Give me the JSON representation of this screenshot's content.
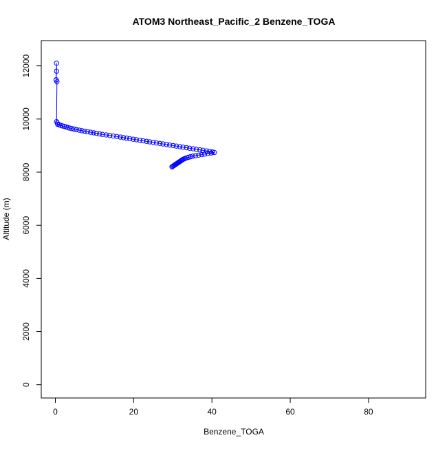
{
  "chart_data": {
    "type": "line",
    "title": "ATOM3 Northeast_Pacific_2 Benzene_TOGA",
    "xlabel": "Benzene_TOGA",
    "ylabel": "Altitude (m)",
    "xlim": [
      -3.6,
      94.6
    ],
    "ylim": [
      -500,
      12950
    ],
    "xticks": [
      0,
      20,
      40,
      60,
      80
    ],
    "yticks": [
      0,
      2000,
      4000,
      6000,
      8000,
      10000,
      12000
    ],
    "x_tick_labels": [
      "0",
      "20",
      "40",
      "60",
      "80"
    ],
    "y_tick_labels": [
      "0",
      "2000",
      "4000",
      "6000",
      "8000",
      "10000",
      "12000"
    ],
    "grid": false,
    "colors": {
      "series": "#0000ff",
      "axes": "#000000",
      "background": "#ffffff"
    },
    "series": [
      {
        "name": "Benzene_TOGA",
        "marker": "open-circle",
        "x": [
          0.2,
          0.3,
          0.3,
          0.2,
          0.4,
          0.3,
          0.5,
          0.6,
          1.0,
          1.4,
          1.8,
          2.3,
          2.8,
          3.2,
          3.6,
          4.2,
          4.8,
          5.4,
          6.1,
          6.8,
          7.5,
          8.2,
          9.0,
          9.8,
          10.5,
          11.3,
          12.0,
          13.0,
          13.9,
          14.8,
          15.7,
          16.6,
          17.4,
          18.2,
          19.0,
          19.9,
          20.7,
          21.6,
          22.4,
          23.3,
          24.1,
          25.0,
          25.8,
          26.7,
          27.5,
          28.4,
          29.2,
          30.1,
          30.9,
          31.8,
          32.6,
          33.5,
          34.3,
          35.2,
          36.0,
          36.9,
          37.7,
          38.6,
          39.4,
          40.1,
          40.6,
          39.8,
          38.9,
          38.1,
          37.4,
          36.6,
          35.8,
          35.1,
          34.5,
          34.0,
          33.6,
          33.2,
          32.9,
          32.6,
          32.4,
          32.2,
          32.0,
          31.8,
          31.6,
          31.4,
          31.2,
          31.0,
          30.8,
          30.6,
          30.4,
          30.2,
          30.0,
          29.8
        ],
        "y": [
          11470,
          11800,
          12100,
          11480,
          11400,
          9900,
          9850,
          9800,
          9780,
          9760,
          9740,
          9720,
          9700,
          9680,
          9660,
          9640,
          9620,
          9600,
          9580,
          9560,
          9540,
          9520,
          9500,
          9480,
          9460,
          9440,
          9420,
          9400,
          9380,
          9360,
          9340,
          9320,
          9300,
          9280,
          9260,
          9240,
          9220,
          9200,
          9180,
          9160,
          9140,
          9120,
          9100,
          9080,
          9060,
          9040,
          9020,
          9000,
          8980,
          8960,
          8940,
          8920,
          8900,
          8880,
          8860,
          8840,
          8820,
          8800,
          8780,
          8760,
          8740,
          8720,
          8700,
          8680,
          8660,
          8640,
          8620,
          8600,
          8580,
          8560,
          8540,
          8520,
          8500,
          8480,
          8460,
          8440,
          8420,
          8400,
          8380,
          8360,
          8340,
          8320,
          8300,
          8280,
          8260,
          8240,
          8220,
          8200
        ]
      }
    ]
  }
}
